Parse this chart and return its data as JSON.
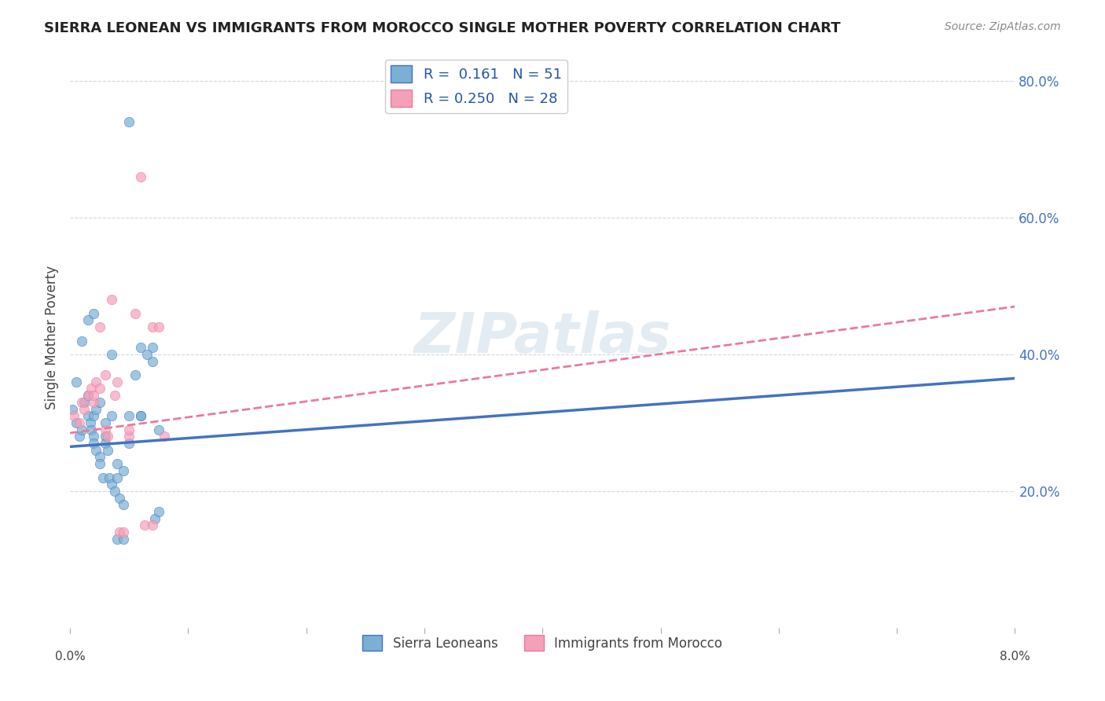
{
  "title": "SIERRA LEONEAN VS IMMIGRANTS FROM MOROCCO SINGLE MOTHER POVERTY CORRELATION CHART",
  "source": "Source: ZipAtlas.com",
  "ylabel": "Single Mother Poverty",
  "y_ticks": [
    0.0,
    0.2,
    0.4,
    0.6,
    0.8
  ],
  "y_tick_labels": [
    "",
    "20.0%",
    "40.0%",
    "60.0%",
    "80.0%"
  ],
  "x_range": [
    0.0,
    0.08
  ],
  "y_range": [
    0.0,
    0.85
  ],
  "sierra_leonean_x": [
    0.0002,
    0.0005,
    0.0008,
    0.001,
    0.0012,
    0.0015,
    0.0015,
    0.0017,
    0.0018,
    0.002,
    0.002,
    0.002,
    0.0022,
    0.0022,
    0.0025,
    0.0025,
    0.0028,
    0.003,
    0.003,
    0.0032,
    0.0033,
    0.0035,
    0.0035,
    0.0038,
    0.004,
    0.004,
    0.0042,
    0.0045,
    0.0045,
    0.005,
    0.005,
    0.0055,
    0.006,
    0.006,
    0.007,
    0.007,
    0.0072,
    0.0075,
    0.0005,
    0.001,
    0.0015,
    0.002,
    0.0025,
    0.003,
    0.0035,
    0.004,
    0.0045,
    0.005,
    0.006,
    0.0065,
    0.0075
  ],
  "sierra_leonean_y": [
    0.32,
    0.3,
    0.28,
    0.29,
    0.33,
    0.34,
    0.31,
    0.3,
    0.29,
    0.31,
    0.28,
    0.27,
    0.32,
    0.26,
    0.25,
    0.24,
    0.22,
    0.28,
    0.27,
    0.26,
    0.22,
    0.21,
    0.31,
    0.2,
    0.22,
    0.24,
    0.19,
    0.23,
    0.18,
    0.31,
    0.27,
    0.37,
    0.31,
    0.31,
    0.39,
    0.41,
    0.16,
    0.17,
    0.36,
    0.42,
    0.45,
    0.46,
    0.33,
    0.3,
    0.4,
    0.13,
    0.13,
    0.74,
    0.41,
    0.4,
    0.29
  ],
  "morocco_x": [
    0.0003,
    0.0008,
    0.001,
    0.0012,
    0.0015,
    0.0018,
    0.002,
    0.002,
    0.0022,
    0.0025,
    0.0025,
    0.003,
    0.003,
    0.0032,
    0.0035,
    0.0038,
    0.004,
    0.0042,
    0.0045,
    0.005,
    0.005,
    0.0055,
    0.006,
    0.0063,
    0.007,
    0.007,
    0.0075,
    0.008
  ],
  "morocco_y": [
    0.31,
    0.3,
    0.33,
    0.32,
    0.34,
    0.35,
    0.33,
    0.34,
    0.36,
    0.44,
    0.35,
    0.37,
    0.29,
    0.28,
    0.48,
    0.34,
    0.36,
    0.14,
    0.14,
    0.28,
    0.29,
    0.46,
    0.66,
    0.15,
    0.44,
    0.15,
    0.44,
    0.28
  ],
  "blue_line_x": [
    0.0,
    0.08
  ],
  "blue_line_y": [
    0.265,
    0.365
  ],
  "pink_line_x": [
    0.0,
    0.08
  ],
  "pink_line_y": [
    0.285,
    0.47
  ],
  "dot_size": 80,
  "blue_color": "#7ab0d4",
  "pink_color": "#f4a0b8",
  "blue_line_color": "#4472c4",
  "pink_line_color": "#e87a9f",
  "watermark": "ZIPatlas",
  "watermark_color": "#c8dae8",
  "background_color": "#ffffff",
  "grid_color": "#d0d8e0",
  "legend_r1": "R =  0.161   N = 51",
  "legend_r2": "R = 0.250   N = 28",
  "legend_l1": "Sierra Leoneans",
  "legend_l2": "Immigrants from Morocco"
}
